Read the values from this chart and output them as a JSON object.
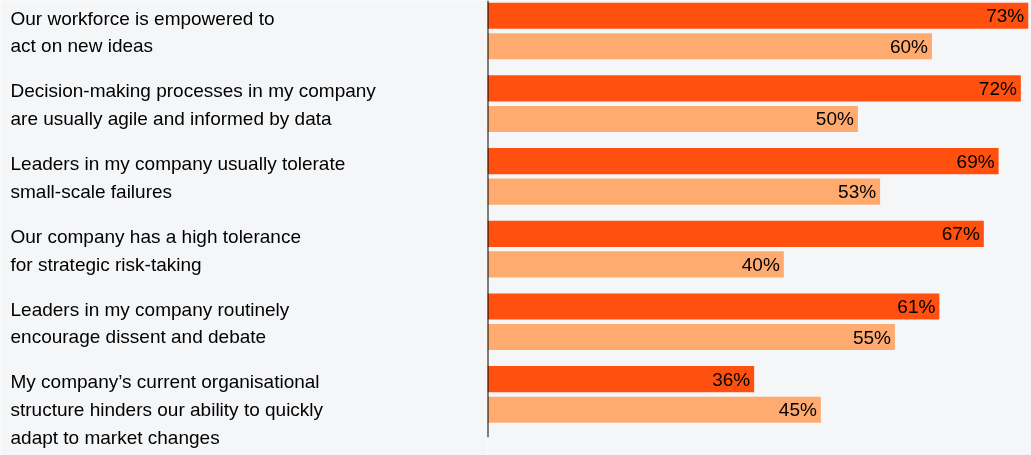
{
  "chart_data": {
    "type": "bar",
    "orientation": "horizontal",
    "tick_labels": "y",
    "grid": false,
    "categories": [
      "Our workforce is empowered to\nact on new ideas",
      "Decision-making processes in my company\nare usually agile and informed by data",
      "Leaders in my company usually tolerate\nsmall-scale failures",
      "Our company has a high tolerance\nfor strategic risk-taking",
      "Leaders in my company routinely\nencourage dissent and debate",
      "My company’s current organisational\nstructure hinders our ability to quickly\nadapt to market changes"
    ],
    "series": [
      {
        "color": "#ff5010",
        "values": [
          73,
          72,
          69,
          67,
          61,
          36
        ],
        "value_labels": [
          "73%",
          "72%",
          "69%",
          "67%",
          "61%",
          "36%"
        ]
      },
      {
        "color": "#ffab70",
        "values": [
          60,
          50,
          53,
          40,
          55,
          45
        ],
        "value_labels": [
          "60%",
          "50%",
          "53%",
          "40%",
          "55%",
          "45%"
        ]
      }
    ]
  }
}
